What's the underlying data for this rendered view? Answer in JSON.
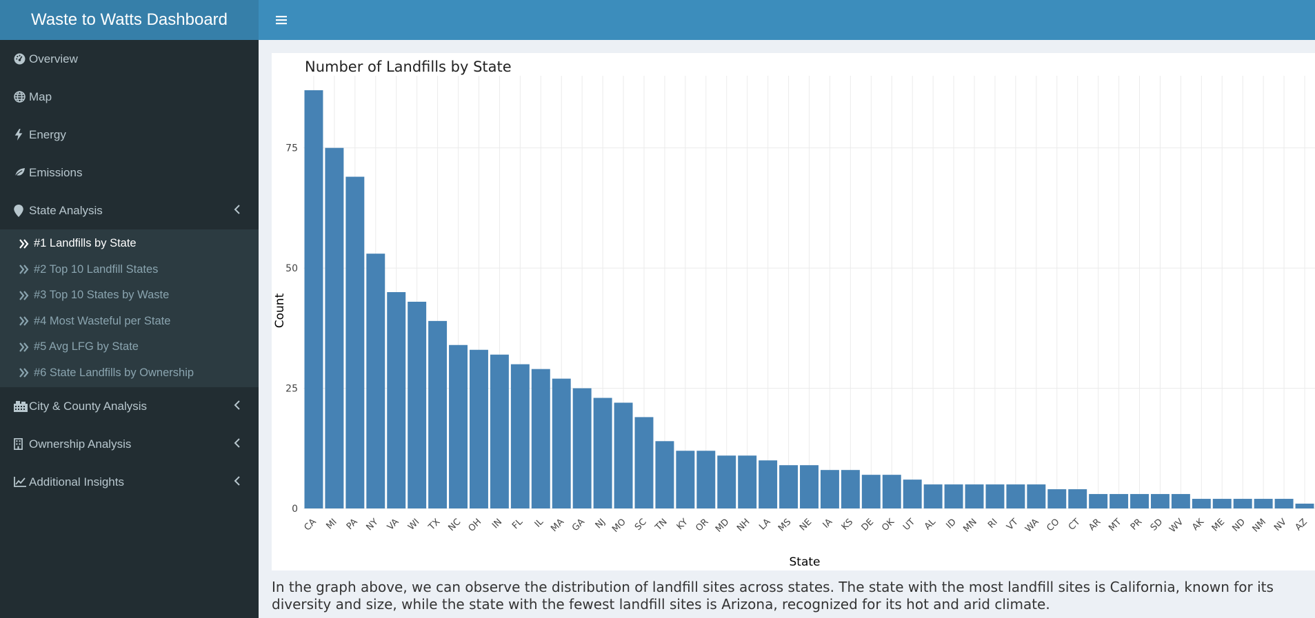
{
  "header": {
    "title": "Waste to Watts Dashboard"
  },
  "sidebar": {
    "items": [
      {
        "label": "Overview",
        "icon": "dashboard-icon"
      },
      {
        "label": "Map",
        "icon": "globe-icon"
      },
      {
        "label": "Energy",
        "icon": "bolt-icon"
      },
      {
        "label": "Emissions",
        "icon": "leaf-icon"
      },
      {
        "label": "State Analysis",
        "icon": "map-marker-icon"
      }
    ],
    "state_analysis_sub": [
      {
        "label": "#1 Landfills by State"
      },
      {
        "label": "#2 Top 10 Landfill States"
      },
      {
        "label": "#3 Top 10 States by Waste"
      },
      {
        "label": "#4 Most Wasteful per State"
      },
      {
        "label": "#5 Avg LFG by State"
      },
      {
        "label": "#6 State Landfills by Ownership"
      }
    ],
    "more_items": [
      {
        "label": "City & County Analysis",
        "icon": "building-icon"
      },
      {
        "label": "Ownership Analysis",
        "icon": "office-icon"
      },
      {
        "label": "Additional Insights",
        "icon": "line-chart-icon"
      }
    ]
  },
  "chart_data": {
    "type": "bar",
    "title": "Number of Landfills by State",
    "xlabel": "State",
    "ylabel": "Count",
    "color": "#4682b4",
    "ylim": [
      0,
      90
    ],
    "yticks": [
      0,
      25,
      50,
      75
    ],
    "categories": [
      "CA",
      "MI",
      "PA",
      "NY",
      "VA",
      "WI",
      "TX",
      "NC",
      "OH",
      "IN",
      "FL",
      "IL",
      "MA",
      "GA",
      "NJ",
      "MO",
      "SC",
      "TN",
      "KY",
      "OR",
      "MD",
      "NH",
      "LA",
      "MS",
      "NE",
      "IA",
      "KS",
      "DE",
      "OK",
      "UT",
      "AL",
      "ID",
      "MN",
      "RI",
      "VT",
      "WA",
      "CO",
      "CT",
      "AR",
      "MT",
      "PR",
      "SD",
      "WV",
      "AK",
      "ME",
      "ND",
      "NM",
      "NV",
      "AZ"
    ],
    "values": [
      87,
      75,
      69,
      53,
      45,
      43,
      39,
      34,
      33,
      32,
      30,
      29,
      27,
      25,
      23,
      22,
      19,
      14,
      12,
      12,
      11,
      11,
      10,
      9,
      9,
      8,
      8,
      7,
      7,
      6,
      5,
      5,
      5,
      5,
      5,
      5,
      4,
      4,
      3,
      3,
      3,
      3,
      3,
      2,
      2,
      2,
      2,
      2,
      1
    ],
    "grid": true
  },
  "description": "In the graph above, we can observe the distribution of landfill sites across states. The state with the most landfill sites is California, known for its diversity and size, while the state with the fewest landfill sites is Arizona, recognized for its hot and arid climate."
}
